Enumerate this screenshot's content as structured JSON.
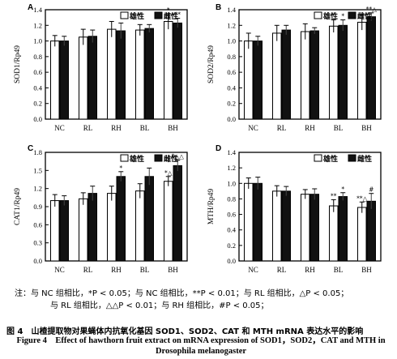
{
  "chart_data": [
    {
      "type": "bar",
      "panel": "A",
      "ylabel": "SOD1/Rp49",
      "categories": [
        "NC",
        "RL",
        "RH",
        "BL",
        "BH"
      ],
      "ylim": [
        0,
        1.4
      ],
      "yticks": [
        0.0,
        0.2,
        0.4,
        0.6,
        0.8,
        1.0,
        1.2,
        1.4
      ],
      "legend": "top-right",
      "series": [
        {
          "name": "雄性",
          "values": [
            1.0,
            1.05,
            1.15,
            1.14,
            1.25
          ],
          "errors": [
            0.07,
            0.1,
            0.1,
            0.07,
            0.1
          ]
        },
        {
          "name": "雌性",
          "values": [
            1.0,
            1.06,
            1.13,
            1.16,
            1.23
          ],
          "errors": [
            0.06,
            0.08,
            0.1,
            0.05,
            0.06
          ]
        }
      ],
      "annotations": [
        {
          "category": 4,
          "series": 0,
          "text": "*"
        },
        {
          "category": 4,
          "series": 1,
          "text": "**"
        }
      ]
    },
    {
      "type": "bar",
      "panel": "B",
      "ylabel": "SOD2/Rp49",
      "categories": [
        "NC",
        "RL",
        "RH",
        "BL",
        "BH"
      ],
      "ylim": [
        0,
        1.4
      ],
      "yticks": [
        0.0,
        0.2,
        0.4,
        0.6,
        0.8,
        1.0,
        1.2,
        1.4
      ],
      "legend": "top-right",
      "series": [
        {
          "name": "雄性",
          "values": [
            1.0,
            1.1,
            1.12,
            1.19,
            1.24
          ],
          "errors": [
            0.1,
            0.1,
            0.1,
            0.08,
            0.1
          ]
        },
        {
          "name": "雌性",
          "values": [
            1.0,
            1.14,
            1.13,
            1.2,
            1.31
          ],
          "errors": [
            0.06,
            0.06,
            0.04,
            0.07,
            0.05
          ]
        }
      ],
      "annotations": [
        {
          "category": 3,
          "series": 1,
          "text": "*"
        },
        {
          "category": 4,
          "series": 1,
          "text": "**△"
        }
      ]
    },
    {
      "type": "bar",
      "panel": "C",
      "ylabel": "CAT1/Rp49",
      "categories": [
        "NC",
        "RL",
        "RH",
        "BL",
        "BH"
      ],
      "ylim": [
        0,
        1.8
      ],
      "yticks": [
        0.0,
        0.3,
        0.6,
        0.9,
        1.2,
        1.5,
        1.8
      ],
      "legend": "top-right",
      "series": [
        {
          "name": "雄性",
          "values": [
            1.0,
            1.03,
            1.12,
            1.16,
            1.32
          ],
          "errors": [
            0.1,
            0.1,
            0.12,
            0.12,
            0.08
          ]
        },
        {
          "name": "雌性",
          "values": [
            1.0,
            1.12,
            1.4,
            1.4,
            1.58
          ],
          "errors": [
            0.08,
            0.12,
            0.08,
            0.14,
            0.09
          ]
        }
      ],
      "annotations": [
        {
          "category": 2,
          "series": 1,
          "text": "*"
        },
        {
          "category": 4,
          "series": 0,
          "text": "*△"
        },
        {
          "category": 4,
          "series": 1,
          "text": "*△△"
        }
      ]
    },
    {
      "type": "bar",
      "panel": "D",
      "ylabel": "MTH/Rp49",
      "categories": [
        "NC",
        "RL",
        "RH",
        "BL",
        "BH"
      ],
      "ylim": [
        0,
        1.4
      ],
      "yticks": [
        0.0,
        0.2,
        0.4,
        0.6,
        0.8,
        1.0,
        1.2,
        1.4
      ],
      "legend": "top-right",
      "series": [
        {
          "name": "雄性",
          "values": [
            1.0,
            0.9,
            0.86,
            0.71,
            0.69
          ],
          "errors": [
            0.07,
            0.07,
            0.06,
            0.08,
            0.07
          ]
        },
        {
          "name": "雌性",
          "values": [
            1.0,
            0.9,
            0.86,
            0.83,
            0.77
          ],
          "errors": [
            0.08,
            0.06,
            0.07,
            0.05,
            0.1
          ]
        }
      ],
      "annotations": [
        {
          "category": 3,
          "series": 0,
          "text": "**"
        },
        {
          "category": 3,
          "series": 1,
          "text": "*"
        },
        {
          "category": 4,
          "series": 0,
          "text": "**△"
        },
        {
          "category": 4,
          "series": 1,
          "text": "#"
        }
      ]
    }
  ],
  "note_line1": "注：与 NC 组相比，*P < 0.05；与 NC 组相比，**P < 0.01；与 RL 组相比，△P < 0.05；",
  "note_line2": "与 RL 组相比，△△P < 0.01；与 RH 组相比，#P < 0.05；",
  "caption_cn": "图 4　山楂提取物对果蝇体内抗氧化基因 SOD1、SOD2、CAT 和 MTH mRNA 表达水平的影响",
  "caption_en": "Figure 4　Effect of hawthorn fruit extract on mRNA expression of SOD1，SOD2，CAT and MTH in Drosophila melanogaster",
  "colors": {
    "male_fill": "#ffffff",
    "female_fill": "#111111",
    "stroke": "#000000"
  }
}
